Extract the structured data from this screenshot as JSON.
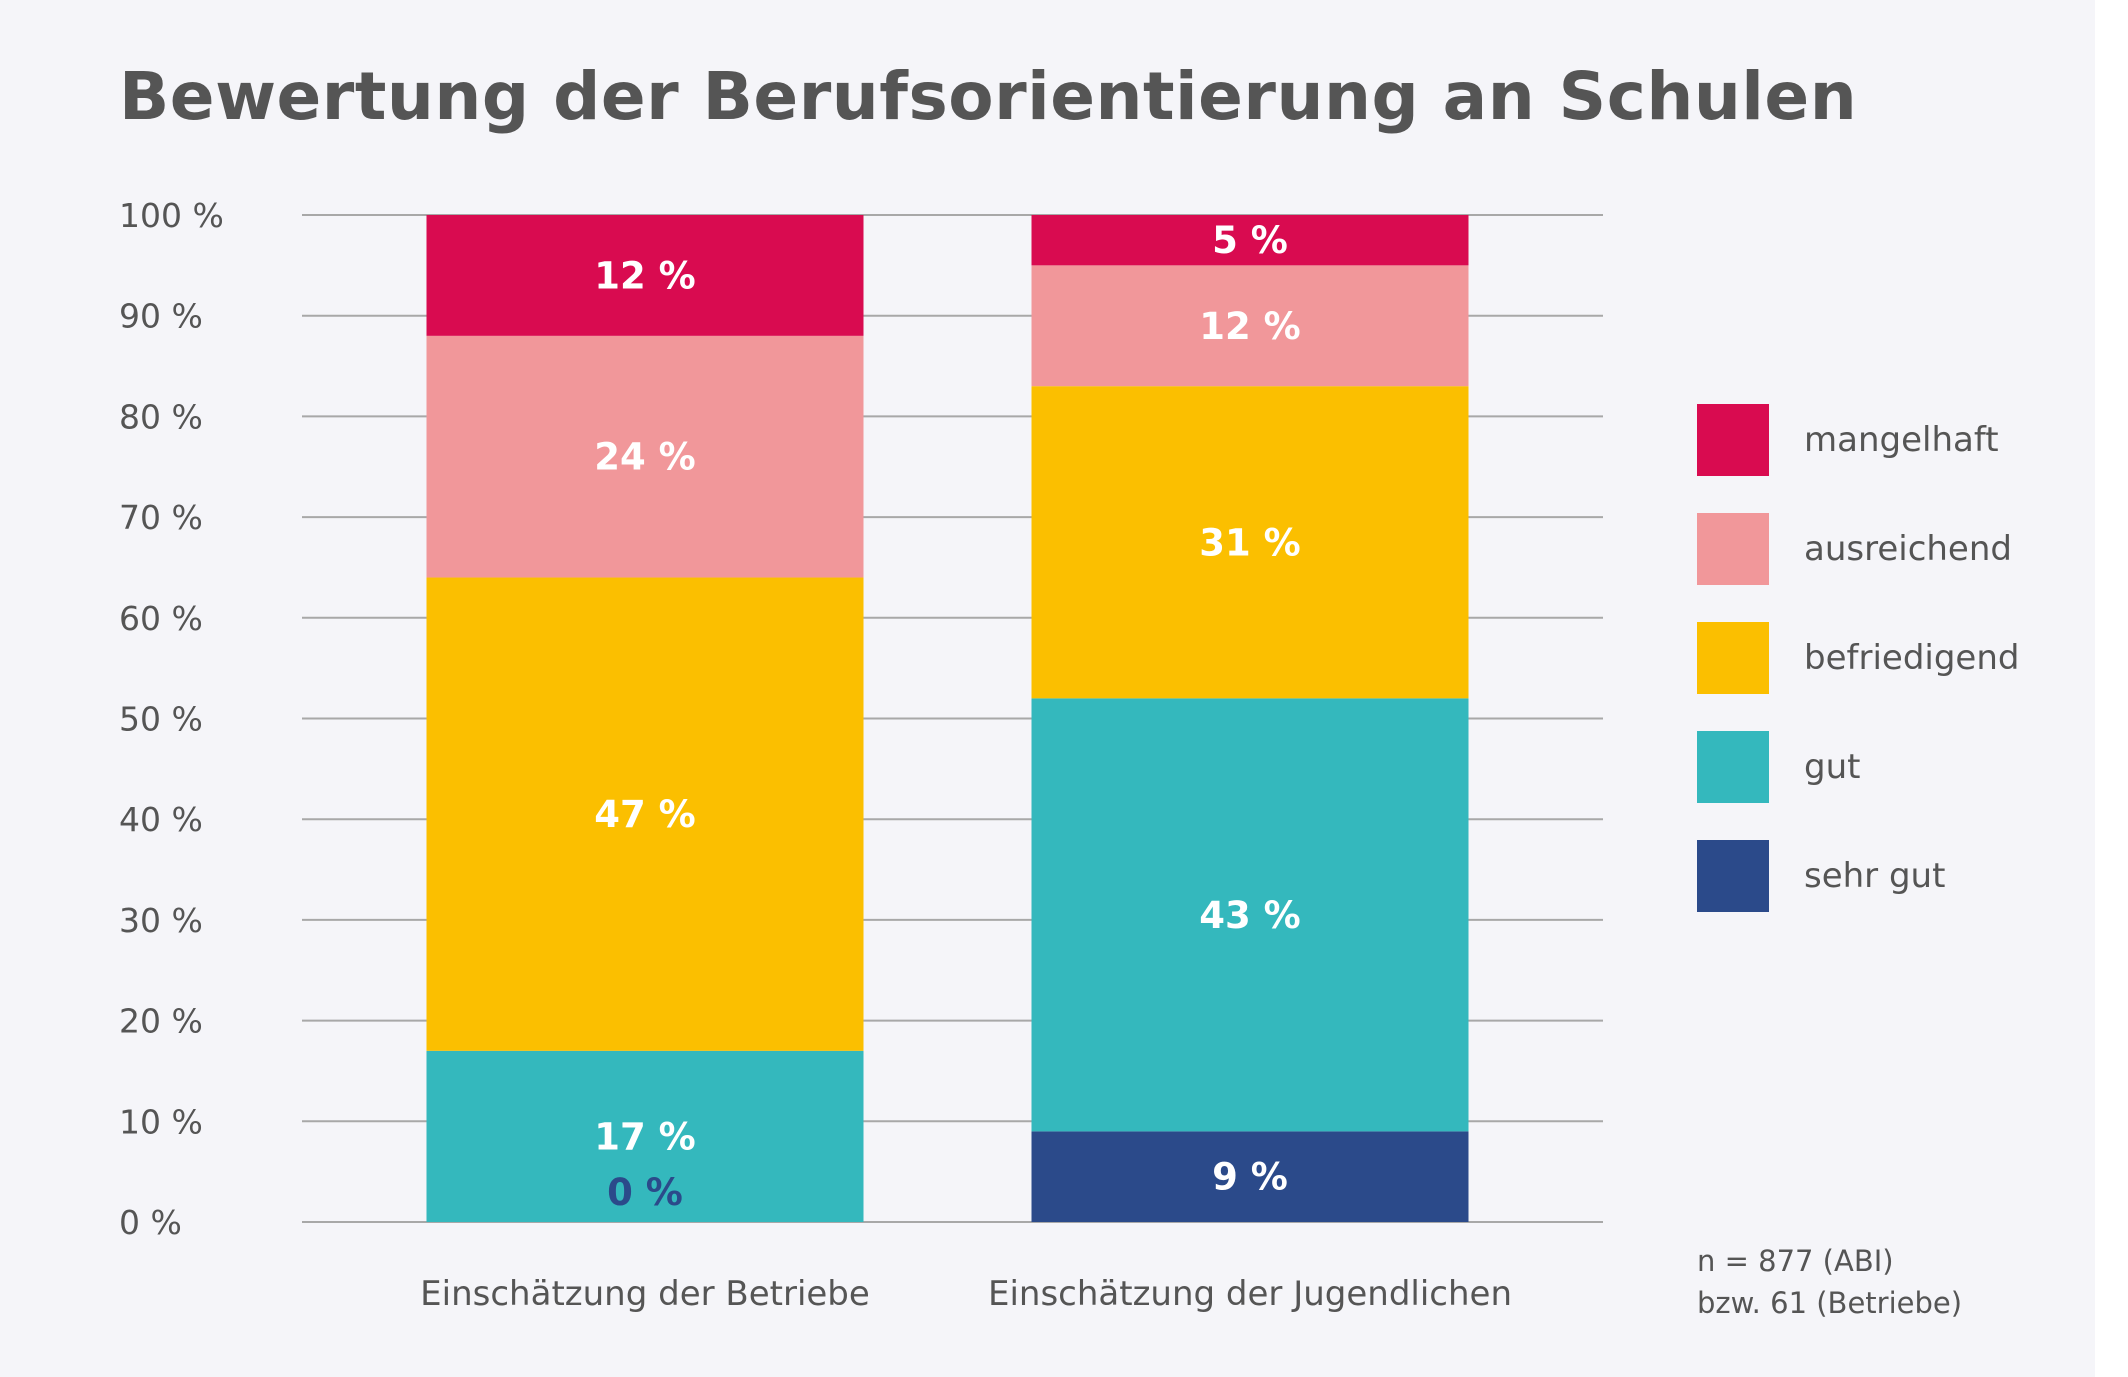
{
  "chart_data": {
    "type": "bar",
    "stacked": true,
    "title": "Bewertung der Berufsorientierung an Schulen",
    "categories": [
      "Einschätzung der Betriebe",
      "Einschätzung der Jugendlichen"
    ],
    "yticks": [
      "0 %",
      "10 %",
      "20 %",
      "30 %",
      "40 %",
      "50 %",
      "60 %",
      "70 %",
      "80 %",
      "90 %",
      "100 %"
    ],
    "ylim": [
      0,
      100
    ],
    "grid": true,
    "legend_position": "right",
    "series": [
      {
        "name": "sehr gut",
        "color": "#2b4a8a",
        "values": [
          0,
          9
        ],
        "labels": [
          "0 %",
          "9 %"
        ]
      },
      {
        "name": "gut",
        "color": "#34b8bd",
        "values": [
          17,
          43
        ],
        "labels": [
          "17 %",
          "43 %"
        ]
      },
      {
        "name": "befriedigend",
        "color": "#fbbf00",
        "values": [
          47,
          31
        ],
        "labels": [
          "47 %",
          "31 %"
        ]
      },
      {
        "name": "ausreichend",
        "color": "#f1979a",
        "values": [
          24,
          12
        ],
        "labels": [
          "24 %",
          "12 %"
        ]
      },
      {
        "name": "mangelhaft",
        "color": "#d90b50",
        "values": [
          12,
          5
        ],
        "labels": [
          "12 %",
          "5 %"
        ]
      }
    ],
    "legend_order": [
      "mangelhaft",
      "ausreichend",
      "befriedigend",
      "gut",
      "sehr gut"
    ],
    "footnote": [
      "n = 877 (ABI)",
      "bzw. 61 (Betriebe)"
    ]
  }
}
